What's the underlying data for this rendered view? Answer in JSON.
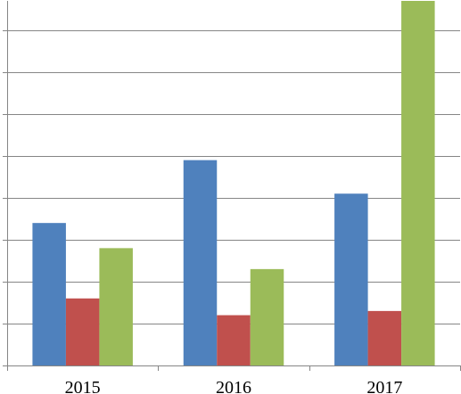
{
  "chart_data": {
    "type": "bar",
    "title": "",
    "xlabel": "",
    "ylabel": "",
    "categories": [
      "2015",
      "2016",
      "2017"
    ],
    "series": [
      {
        "color": "#4F81BD",
        "values": [
          3.4,
          4.9,
          4.1
        ]
      },
      {
        "color": "#C0504D",
        "values": [
          1.6,
          1.2,
          1.3
        ]
      },
      {
        "color": "#9BBB59",
        "values": [
          2.8,
          2.3,
          8.7
        ]
      }
    ],
    "ylim": [
      0,
      8.7
    ],
    "y_gridlines": [
      0,
      1,
      2,
      3,
      4,
      5,
      6,
      7,
      8
    ],
    "grid": true,
    "y_tick_labels_visible": false,
    "legend": "none"
  }
}
